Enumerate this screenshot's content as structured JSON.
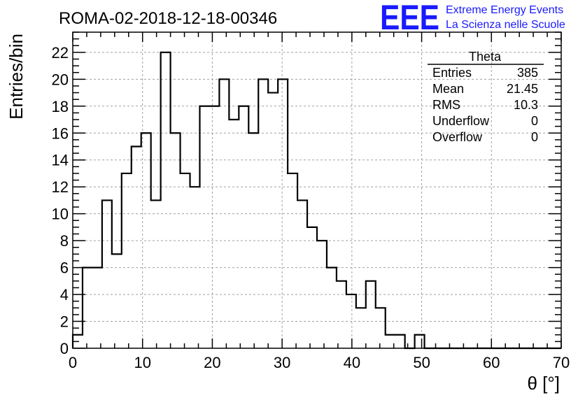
{
  "logo": {
    "mark": "EEE",
    "line1": "Extreme Energy Events",
    "line2": "La Scienza nelle Scuole",
    "color": "#1a1aff"
  },
  "stats": {
    "title": "Theta",
    "rows": [
      {
        "label": "Entries",
        "value": "385"
      },
      {
        "label": "Mean",
        "value": "21.45"
      },
      {
        "label": "RMS",
        "value": "10.3"
      },
      {
        "label": "Underflow",
        "value": "0"
      },
      {
        "label": "Overflow",
        "value": "0"
      }
    ]
  },
  "chart_data": {
    "type": "histogram",
    "title": "ROMA-02-2018-12-18-00346",
    "xlabel": "θ [°]",
    "ylabel": "Entries/bin",
    "xlim": [
      0,
      70
    ],
    "ylim": [
      0,
      23.5
    ],
    "grid": true,
    "bin_width": 1.4,
    "x_ticks": [
      0,
      10,
      20,
      30,
      40,
      50,
      60,
      70
    ],
    "y_ticks": [
      0,
      2,
      4,
      6,
      8,
      10,
      12,
      14,
      16,
      18,
      20,
      22
    ],
    "values": [
      1,
      6,
      6,
      11,
      7,
      13,
      15,
      16,
      11,
      22,
      16,
      13,
      12,
      18,
      18,
      20,
      17,
      18,
      16,
      20,
      19,
      20,
      13,
      11,
      9,
      8,
      6,
      5,
      4,
      3,
      5,
      3,
      1,
      1,
      0,
      1,
      0,
      0,
      0,
      0,
      0,
      0,
      0,
      0,
      0,
      0,
      0,
      0,
      0,
      0
    ]
  }
}
